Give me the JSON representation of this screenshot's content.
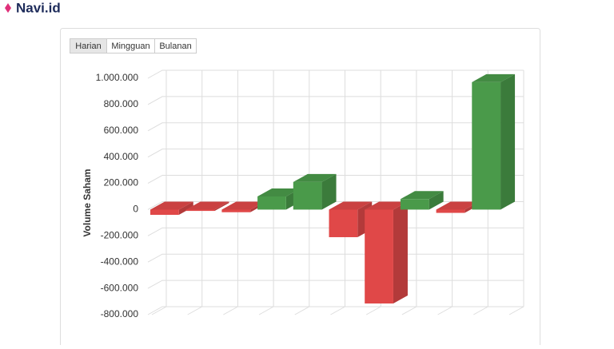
{
  "header": {
    "logo": "Navi.id"
  },
  "tabs": [
    "Harian",
    "Mingguan",
    "Bulanan"
  ],
  "chart_data": {
    "type": "bar3d",
    "y_label": "Volume Saham",
    "values": [
      -40000,
      -10000,
      -20000,
      100000,
      210000,
      -210000,
      -715000,
      80000,
      -25000,
      970000
    ],
    "positive_color": "#4a9a4a",
    "negative_color": "#e04848",
    "ylim": [
      -800000,
      1000000
    ],
    "yticks": [
      {
        "value": -800000,
        "label": "-800.000"
      },
      {
        "value": -600000,
        "label": "-600.000"
      },
      {
        "value": -400000,
        "label": "-400.000"
      },
      {
        "value": -200000,
        "label": "-200.000"
      },
      0,
      {
        "value": 200000,
        "label": "200.000"
      },
      {
        "value": 400000,
        "label": "400.000"
      },
      {
        "value": 600000,
        "label": "600.000"
      },
      {
        "value": 800000,
        "label": "800.000"
      },
      {
        "value": 1000000,
        "label": "1.000.000"
      }
    ],
    "grid": true
  }
}
